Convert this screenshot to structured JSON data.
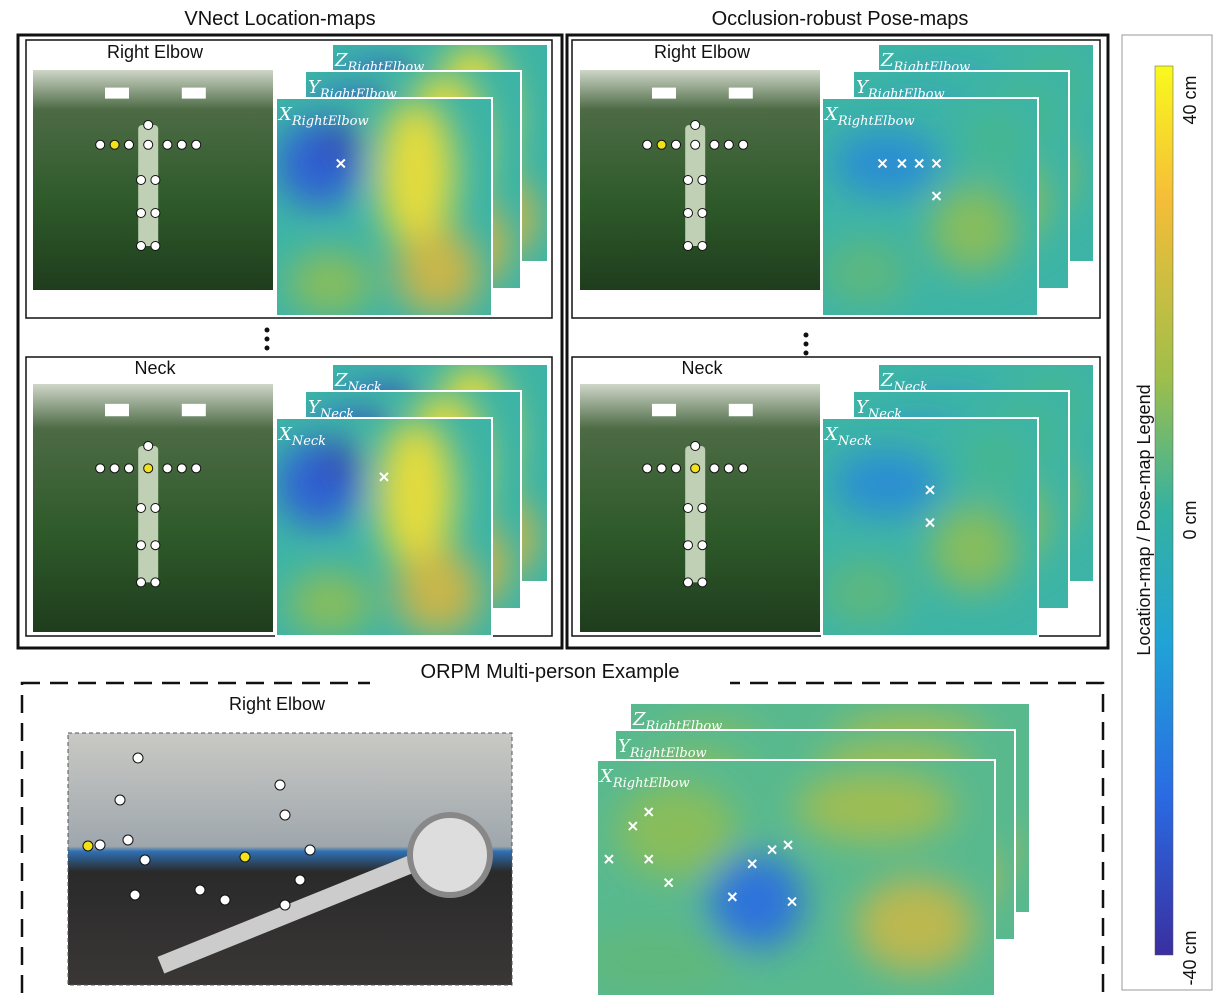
{
  "panels": [
    {
      "title": "VNect Location-maps",
      "rows": [
        {
          "joint": "Right Elbow",
          "maps": [
            {
              "axis": "Z",
              "sub": "RightElbow"
            },
            {
              "axis": "Y",
              "sub": "RightElbow"
            },
            {
              "axis": "X",
              "sub": "RightElbow"
            }
          ]
        },
        {
          "joint": "Neck",
          "maps": [
            {
              "axis": "Z",
              "sub": "Neck"
            },
            {
              "axis": "Y",
              "sub": "Neck"
            },
            {
              "axis": "X",
              "sub": "Neck"
            }
          ]
        }
      ]
    },
    {
      "title": "Occlusion-robust Pose-maps",
      "rows": [
        {
          "joint": "Right Elbow",
          "maps": [
            {
              "axis": "Z",
              "sub": "RightElbow"
            },
            {
              "axis": "Y",
              "sub": "RightElbow"
            },
            {
              "axis": "X",
              "sub": "RightElbow"
            }
          ]
        },
        {
          "joint": "Neck",
          "maps": [
            {
              "axis": "Z",
              "sub": "Neck"
            },
            {
              "axis": "Y",
              "sub": "Neck"
            },
            {
              "axis": "X",
              "sub": "Neck"
            }
          ]
        }
      ]
    }
  ],
  "multi_person": {
    "title": "ORPM Multi-person Example",
    "joint": "Right Elbow",
    "maps": [
      {
        "axis": "Z",
        "sub": "RightElbow"
      },
      {
        "axis": "Y",
        "sub": "RightElbow"
      },
      {
        "axis": "X",
        "sub": "RightElbow"
      }
    ]
  },
  "legend": {
    "title": "Location-map / Pose-map Legend",
    "ticks": [
      "40 cm",
      "0 cm",
      "-40 cm"
    ]
  }
}
